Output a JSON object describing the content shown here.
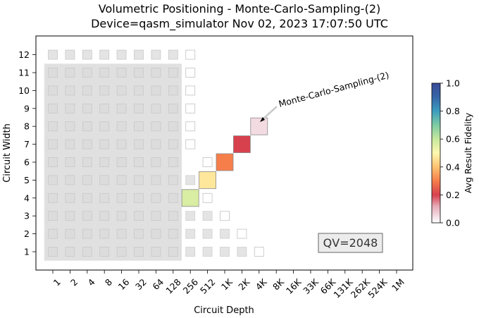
{
  "chart_data": {
    "type": "heatmap",
    "title": "Volumetric Positioning - Monte-Carlo-Sampling-(2)",
    "subtitle": "Device=qasm_simulator  Nov 02, 2023 17:07:50 UTC",
    "xlabel": "Circuit Depth",
    "ylabel": "Circuit Width",
    "x_ticks": [
      "1",
      "2",
      "4",
      "8",
      "16",
      "32",
      "64",
      "128",
      "256",
      "512",
      "1K",
      "2K",
      "4K",
      "8K",
      "16K",
      "33K",
      "66K",
      "131K",
      "262K",
      "524K",
      "1M"
    ],
    "y_ticks": [
      "1",
      "2",
      "3",
      "4",
      "5",
      "6",
      "7",
      "8",
      "9",
      "10",
      "11",
      "12"
    ],
    "qv_label": "QV=2048",
    "colorbar": {
      "label": "Avg Result Fidelity",
      "ticks": [
        "0.0",
        "0.2",
        "0.4",
        "0.6",
        "0.8",
        "1.0"
      ],
      "range": [
        0,
        1
      ],
      "colormap": "RdYlBu-with-pink-low"
    },
    "qv_region": {
      "width_max": 11,
      "depth_max": 128
    },
    "gray_cells": [
      {
        "width": 1,
        "depth_index": 8
      },
      {
        "width": 1,
        "depth_index": 9
      },
      {
        "width": 1,
        "depth_index": 10
      },
      {
        "width": 1,
        "depth_index": 11
      },
      {
        "width": 2,
        "depth_index": 8
      },
      {
        "width": 2,
        "depth_index": 9
      },
      {
        "width": 2,
        "depth_index": 10
      },
      {
        "width": 3,
        "depth_index": 8
      },
      {
        "width": 3,
        "depth_index": 9
      },
      {
        "width": 4,
        "depth_index": 8
      },
      {
        "width": 5,
        "depth_index": 8
      }
    ],
    "gray_row_12": {
      "width": 12,
      "depth_index_start": 0,
      "depth_index_end": 7
    },
    "outline_cells": [
      {
        "width": 1,
        "depth_index": 12
      },
      {
        "width": 2,
        "depth_index": 11
      },
      {
        "width": 3,
        "depth_index": 10
      },
      {
        "width": 4,
        "depth_index": 9
      },
      {
        "width": 5,
        "depth_index": 9
      },
      {
        "width": 6,
        "depth_index": 9
      },
      {
        "width": 6,
        "depth_index": 10
      },
      {
        "width": 7,
        "depth_index": 8
      },
      {
        "width": 8,
        "depth_index": 8
      },
      {
        "width": 9,
        "depth_index": 8
      },
      {
        "width": 10,
        "depth_index": 8
      },
      {
        "width": 11,
        "depth_index": 8
      },
      {
        "width": 12,
        "depth_index": 8
      }
    ],
    "data_points": [
      {
        "width": 4,
        "depth": 256,
        "depth_index": 8,
        "fidelity": 0.55
      },
      {
        "width": 5,
        "depth": 512,
        "depth_index": 9,
        "fidelity": 0.4
      },
      {
        "width": 6,
        "depth": "1K",
        "depth_index": 10,
        "fidelity": 0.2
      },
      {
        "width": 7,
        "depth": "2K",
        "depth_index": 11,
        "fidelity": 0.1
      },
      {
        "width": 8,
        "depth": "4K",
        "depth_index": 12,
        "fidelity": 0.0
      }
    ],
    "annotation": {
      "text": "Monte-Carlo-Sampling-(2)",
      "target_width": 8,
      "target_depth_index": 12
    }
  }
}
